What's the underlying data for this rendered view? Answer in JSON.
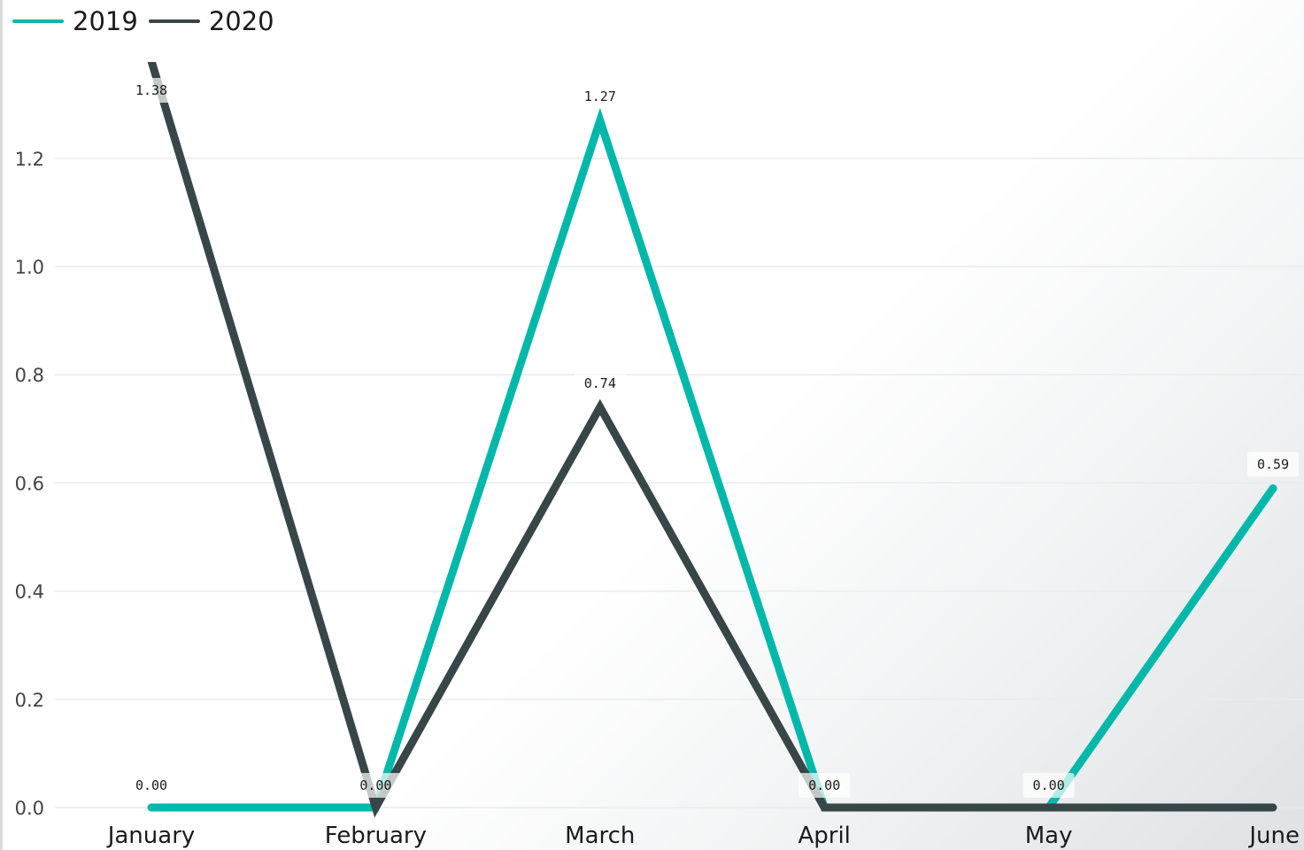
{
  "chart_data": {
    "type": "line",
    "title": "",
    "xlabel": "",
    "ylabel": "",
    "categories": [
      "January",
      "February",
      "March",
      "April",
      "May",
      "June"
    ],
    "series": [
      {
        "name": "2019",
        "color": "#01b8aa",
        "values": [
          0.0,
          0.0,
          1.27,
          0.0,
          0.0,
          0.59
        ],
        "labels": [
          "0.00",
          "0.00",
          "1.27",
          "0.00",
          "0.00",
          "0.59"
        ]
      },
      {
        "name": "2020",
        "color": "#374649",
        "values": [
          1.38,
          0.0,
          0.74,
          0.0,
          0.0,
          0.0
        ],
        "labels": [
          "1.38",
          "",
          "0.74",
          "",
          "",
          ""
        ]
      }
    ],
    "yticks": [
      "0.0",
      "0.2",
      "0.4",
      "0.6",
      "0.8",
      "1.0",
      "1.2"
    ],
    "ytick_values": [
      0,
      0.2,
      0.4,
      0.6,
      0.8,
      1.0,
      1.2
    ],
    "ylim": [
      0,
      1.4
    ],
    "grid": true,
    "legend_position": "top-left"
  }
}
